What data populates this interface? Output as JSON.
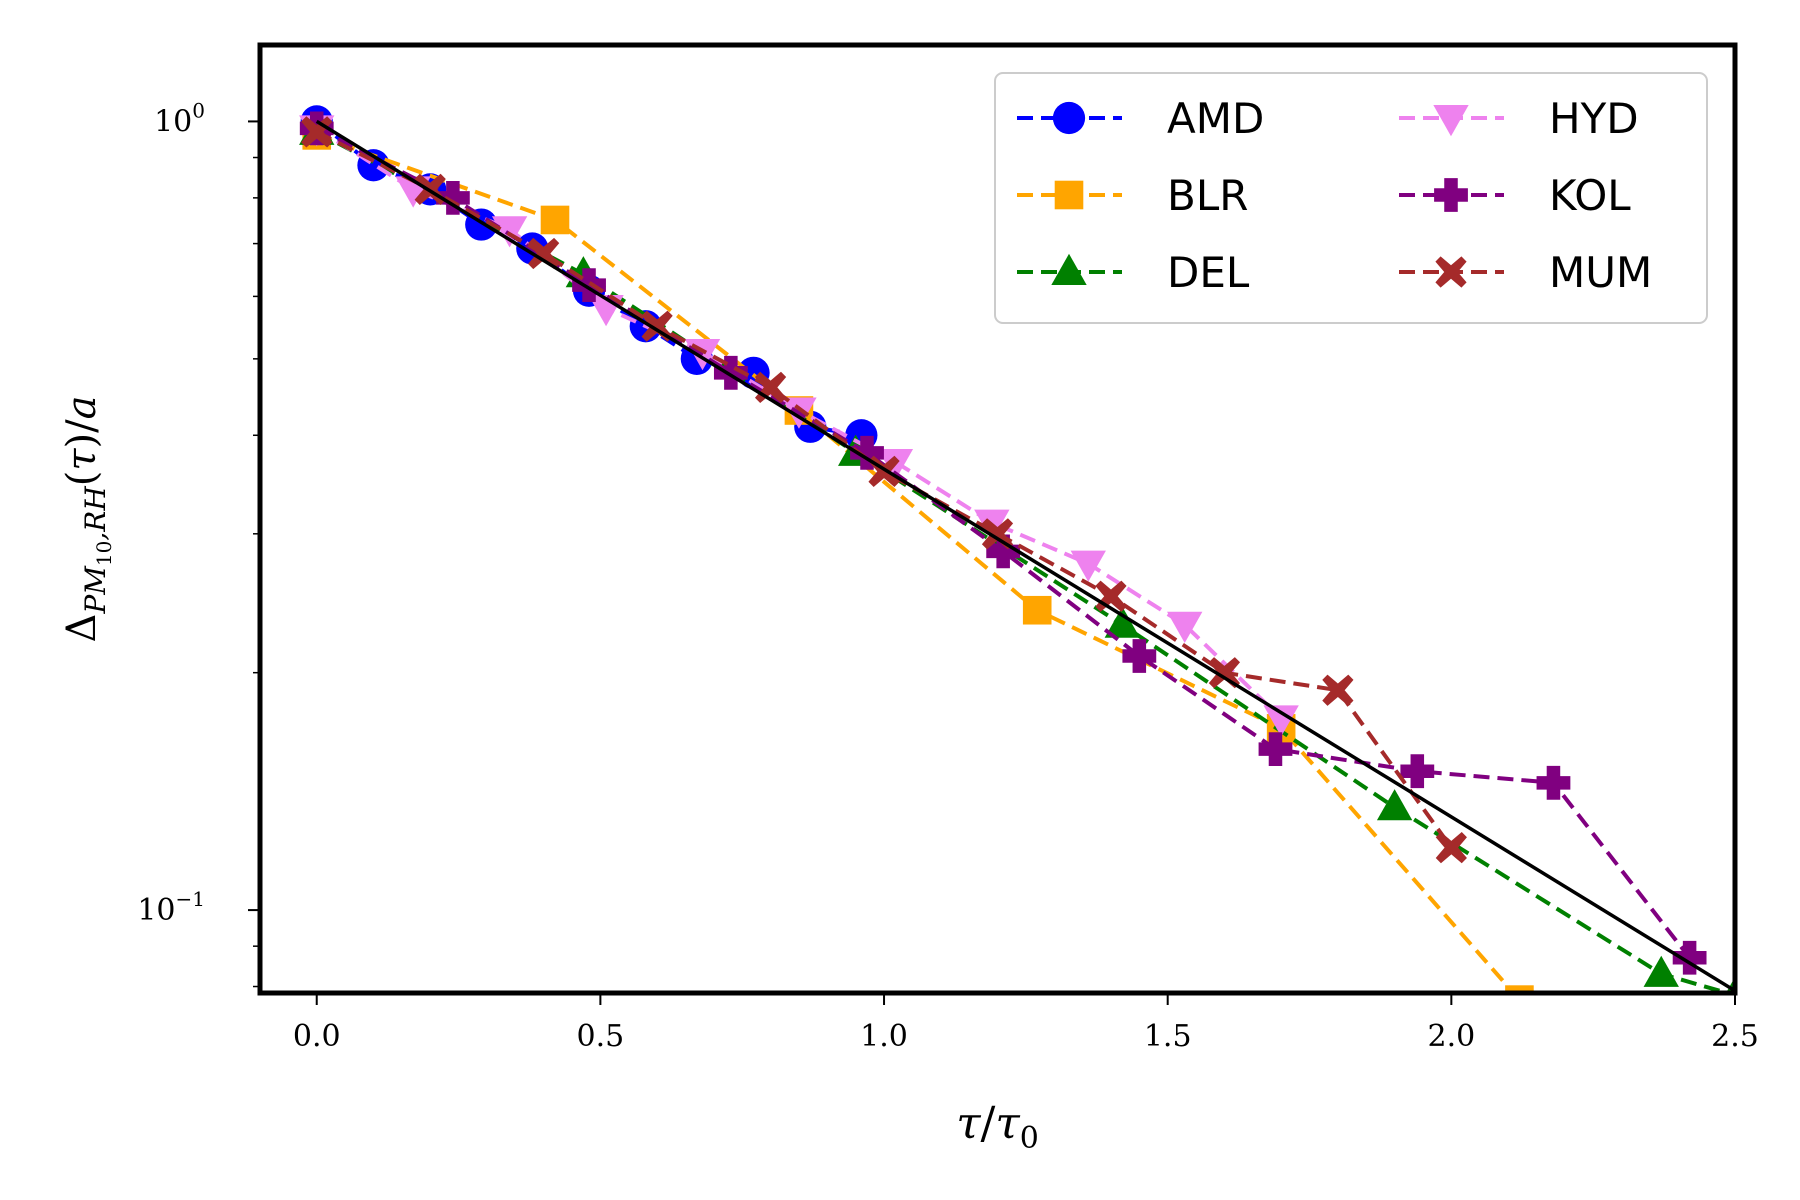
{
  "chart_data": {
    "type": "line",
    "title": "",
    "xlabel": "τ/τ₀",
    "ylabel": "Δ_{PM10,RH}(τ)/a",
    "xlim": [
      -0.1,
      2.5
    ],
    "ylim": [
      0.0785,
      1.25
    ],
    "yscale": "log",
    "grid": false,
    "legend_position": "top-right",
    "x_ticks": [
      {
        "value": 0.0,
        "label": "0.0"
      },
      {
        "value": 0.5,
        "label": "0.5"
      },
      {
        "value": 1.0,
        "label": "1.0"
      },
      {
        "value": 1.5,
        "label": "1.5"
      },
      {
        "value": 2.0,
        "label": "2.0"
      },
      {
        "value": 2.5,
        "label": "2.5"
      }
    ],
    "y_major_ticks": [
      {
        "value": 1.0,
        "base": "10",
        "exp": "0"
      },
      {
        "value": 0.1,
        "base": "10",
        "exp": "−1"
      }
    ],
    "y_minor_ticks": [
      0.08,
      0.09,
      0.2,
      0.3,
      0.4,
      0.5,
      0.6,
      0.7,
      0.8,
      0.9
    ],
    "series": [
      {
        "name": "AMD",
        "color": "#0000ff",
        "marker": "circle",
        "x": [
          0.0,
          0.1,
          0.2,
          0.29,
          0.38,
          0.48,
          0.58,
          0.67,
          0.77,
          0.87,
          0.96
        ],
        "y": [
          1.0,
          0.88,
          0.82,
          0.74,
          0.69,
          0.61,
          0.55,
          0.5,
          0.48,
          0.41,
          0.4
        ]
      },
      {
        "name": "BLR",
        "color": "#ffa500",
        "marker": "square",
        "x": [
          0.0,
          0.42,
          0.85,
          1.27,
          1.7,
          2.12
        ],
        "y": [
          0.96,
          0.75,
          0.43,
          0.24,
          0.17,
          0.077
        ]
      },
      {
        "name": "DEL",
        "color": "#008000",
        "marker": "triangle-up",
        "x": [
          0.0,
          0.47,
          0.95,
          1.42,
          1.9,
          2.37,
          2.5
        ],
        "y": [
          0.97,
          0.64,
          0.38,
          0.23,
          0.135,
          0.083,
          0.078
        ]
      },
      {
        "name": "HYD",
        "color": "#ee82ee",
        "marker": "triangle-down",
        "x": [
          0.0,
          0.17,
          0.34,
          0.51,
          0.68,
          0.85,
          1.02,
          1.19,
          1.36,
          1.53,
          1.7
        ],
        "y": [
          0.98,
          0.82,
          0.73,
          0.58,
          0.51,
          0.43,
          0.37,
          0.31,
          0.275,
          0.23,
          0.175
        ]
      },
      {
        "name": "KOL",
        "color": "#800080",
        "marker": "plus",
        "x": [
          0.0,
          0.24,
          0.48,
          0.73,
          0.97,
          1.21,
          1.45,
          1.69,
          1.94,
          2.18,
          2.42
        ],
        "y": [
          0.98,
          0.8,
          0.62,
          0.48,
          0.38,
          0.285,
          0.21,
          0.16,
          0.15,
          0.145,
          0.087
        ]
      },
      {
        "name": "MUM",
        "color": "#a52a2a",
        "marker": "x",
        "x": [
          0.0,
          0.2,
          0.4,
          0.6,
          0.8,
          1.0,
          1.2,
          1.4,
          1.6,
          1.8,
          2.0
        ],
        "y": [
          0.97,
          0.82,
          0.68,
          0.55,
          0.46,
          0.36,
          0.3,
          0.25,
          0.2,
          0.19,
          0.12
        ]
      },
      {
        "name": "fit",
        "color": "#000000",
        "marker": "none",
        "legend": false,
        "x": [
          0.0,
          2.5
        ],
        "y": [
          1.0,
          0.079
        ]
      }
    ]
  }
}
